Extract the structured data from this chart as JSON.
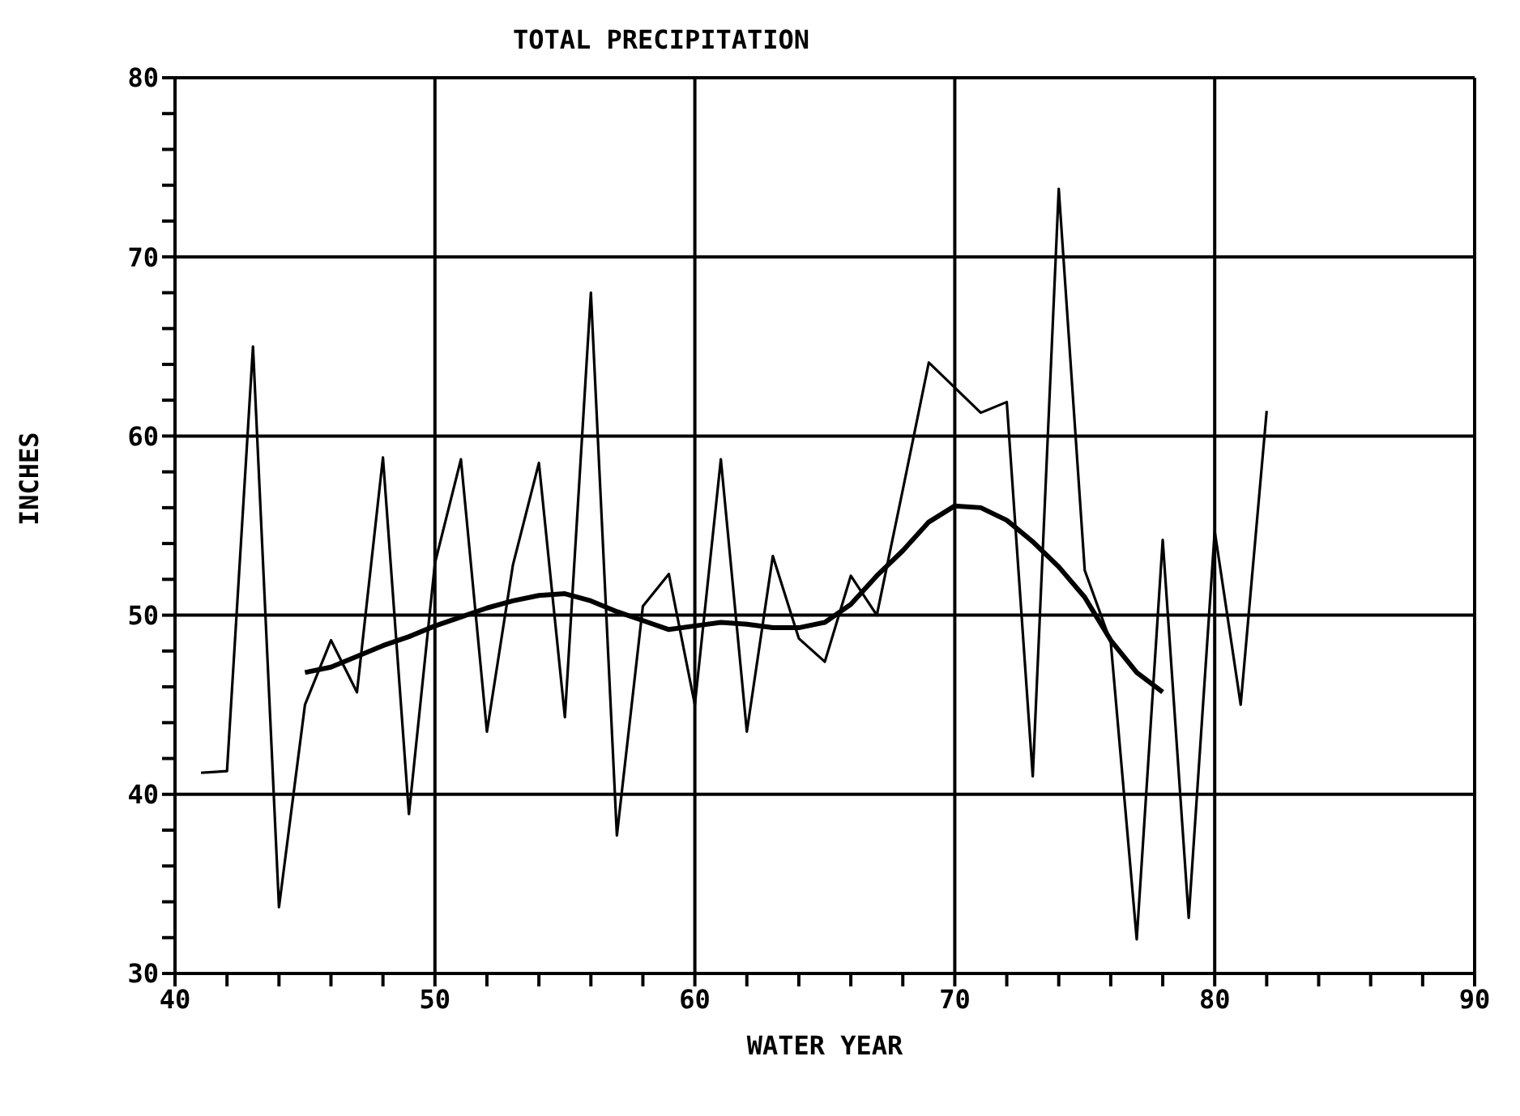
{
  "chart_data": {
    "type": "line",
    "title": "TOTAL PRECIPITATION",
    "xlabel": "WATER YEAR",
    "ylabel": "INCHES",
    "x": [
      41,
      42,
      43,
      44,
      45,
      46,
      47,
      48,
      49,
      50,
      51,
      52,
      53,
      54,
      55,
      56,
      57,
      58,
      59,
      60,
      61,
      62,
      63,
      64,
      65,
      66,
      67,
      68,
      69,
      70,
      71,
      72,
      73,
      74,
      75,
      76,
      77,
      78,
      79,
      80,
      81,
      82
    ],
    "series": [
      {
        "color": "#000000",
        "values": [
          41.2,
          41.3,
          65,
          33.7,
          45,
          48.6,
          45.7,
          58.8,
          38.9,
          52.9,
          58.7,
          43.5,
          52.8,
          58.5,
          44.3,
          68,
          37.7,
          50.5,
          52.3,
          45,
          58.7,
          43.5,
          53.3,
          48.7,
          47.4,
          52.2,
          50,
          57,
          64.1,
          62.7,
          61.3,
          61.9,
          41,
          73.8,
          52.5,
          48.5,
          31.9,
          54.2,
          33.1,
          54.7,
          45,
          61.4
        ]
      },
      {
        "color": "#000000",
        "x": [
          45,
          46,
          47,
          48,
          49,
          50,
          51,
          52,
          53,
          54,
          55,
          56,
          57,
          58,
          59,
          60,
          61,
          62,
          63,
          64,
          65,
          66,
          67,
          68,
          69,
          70,
          71,
          72,
          73,
          74,
          75,
          76,
          77,
          78
        ],
        "values": [
          46.8,
          47.1,
          47.7,
          48.3,
          48.8,
          49.4,
          49.9,
          50.4,
          50.8,
          51.1,
          51.2,
          50.8,
          50.2,
          49.7,
          49.2,
          49.4,
          49.6,
          49.5,
          49.3,
          49.3,
          49.6,
          50.6,
          52.2,
          53.6,
          55.2,
          56.1,
          56,
          55.3,
          54.1,
          52.7,
          51,
          48.6,
          46.8,
          45.7
        ]
      }
    ],
    "xlim": [
      40,
      90
    ],
    "xticks": [
      40,
      {
        "value": 42,
        "label": null
      },
      {
        "value": 44,
        "label": null
      },
      {
        "value": 46,
        "label": null
      },
      {
        "value": 48,
        "label": null
      },
      50,
      {
        "value": 52,
        "label": null
      },
      {
        "value": 54,
        "label": null
      },
      {
        "value": 56,
        "label": null
      },
      {
        "value": 58,
        "label": null
      },
      60,
      {
        "value": 62,
        "label": null
      },
      {
        "value": 64,
        "label": null
      },
      {
        "value": 66,
        "label": null
      },
      {
        "value": 68,
        "label": null
      },
      70,
      {
        "value": 72,
        "label": null
      },
      {
        "value": 74,
        "label": null
      },
      {
        "value": 76,
        "label": null
      },
      {
        "value": 78,
        "label": null
      },
      80,
      {
        "value": 82,
        "label": null
      },
      {
        "value": 84,
        "label": null
      },
      {
        "value": 86,
        "label": null
      },
      {
        "value": 88,
        "label": null
      },
      90
    ],
    "ylim": [
      30,
      80
    ],
    "yticks": [
      30,
      {
        "value": 32,
        "label": null
      },
      {
        "value": 34,
        "label": null
      },
      {
        "value": 36,
        "label": null
      },
      {
        "value": 38,
        "label": null
      },
      40,
      {
        "value": 42,
        "label": null
      },
      {
        "value": 44,
        "label": null
      },
      {
        "value": 46,
        "label": null
      },
      {
        "value": 48,
        "label": null
      },
      50,
      {
        "value": 52,
        "label": null
      },
      {
        "value": 54,
        "label": null
      },
      {
        "value": 56,
        "label": null
      },
      {
        "value": 58,
        "label": null
      },
      60,
      {
        "value": 62,
        "label": null
      },
      {
        "value": 64,
        "label": null
      },
      {
        "value": 66,
        "label": null
      },
      {
        "value": 68,
        "label": null
      },
      70,
      {
        "value": 72,
        "label": null
      },
      {
        "value": 74,
        "label": null
      },
      {
        "value": 76,
        "label": null
      },
      {
        "value": 78,
        "label": null
      },
      80
    ],
    "grid": true,
    "legend": false,
    "marker": "none",
    "line_style": "solid"
  }
}
